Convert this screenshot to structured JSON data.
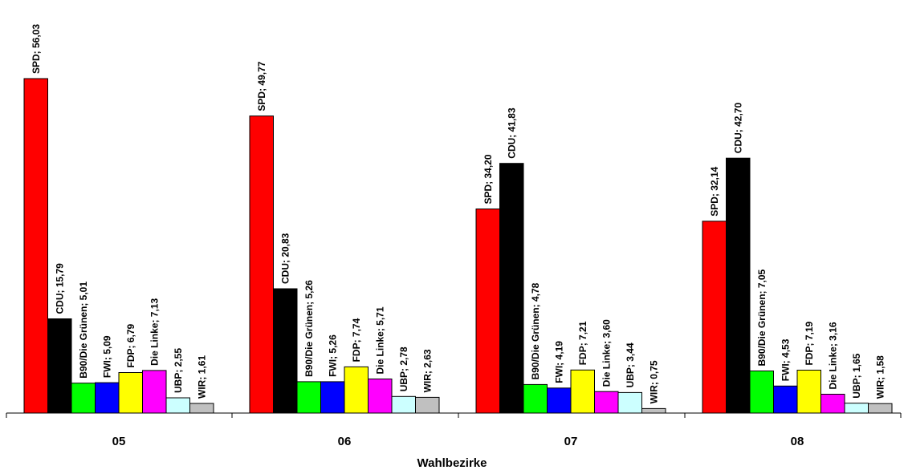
{
  "chart_data": {
    "type": "bar",
    "title": "",
    "xlabel": "Wahlbezirke",
    "ylabel": "",
    "ylim": [
      0,
      62
    ],
    "grid": false,
    "legend": "none",
    "categories": [
      "05",
      "06",
      "07",
      "08"
    ],
    "series": [
      {
        "name": "SPD",
        "color": "#ff0000",
        "values": [
          56.03,
          49.77,
          34.2,
          32.14
        ],
        "labels": [
          "SPD; 56,03",
          "SPD; 49,77",
          "SPD; 34,20",
          "SPD; 32,14"
        ]
      },
      {
        "name": "CDU",
        "color": "#000000",
        "values": [
          15.79,
          20.83,
          41.83,
          42.7
        ],
        "labels": [
          "CDU; 15,79",
          "CDU; 20,83",
          "CDU; 41,83",
          "CDU; 42,70"
        ]
      },
      {
        "name": "B90/Die Grünen",
        "color": "#00ff00",
        "values": [
          5.01,
          5.26,
          4.78,
          7.05
        ],
        "labels": [
          "B90/Die Grünen; 5,01",
          "B90/Die Grünen; 5,26",
          "B90/Die Grünen; 4,78",
          "B90/Die Grünen; 7,05"
        ]
      },
      {
        "name": "FWI",
        "color": "#0000ff",
        "values": [
          5.09,
          5.26,
          4.19,
          4.53
        ],
        "labels": [
          "FWI; 5,09",
          "FWI; 5,26",
          "FWI; 4,19",
          "FWI; 4,53"
        ]
      },
      {
        "name": "FDP",
        "color": "#ffff00",
        "values": [
          6.79,
          7.74,
          7.21,
          7.19
        ],
        "labels": [
          "FDP; 6,79",
          "FDP; 7,74",
          "FDP; 7,21",
          "FDP; 7,19"
        ]
      },
      {
        "name": "Die Linke",
        "color": "#ff00ff",
        "values": [
          7.13,
          5.71,
          3.6,
          3.16
        ],
        "labels": [
          "Die Linke; 7,13",
          "Die Linke; 5,71",
          "Die Linke; 3,60",
          "Die Linke; 3,16"
        ]
      },
      {
        "name": "UBP",
        "color": "#ccffff",
        "values": [
          2.55,
          2.78,
          3.44,
          1.65
        ],
        "labels": [
          "UBP; 2,55",
          "UBP; 2,78",
          "UBP; 3,44",
          "UBP; 1,65"
        ]
      },
      {
        "name": "WIR",
        "color": "#c0c0c0",
        "values": [
          1.61,
          2.63,
          0.75,
          1.58
        ],
        "labels": [
          "WIR; 1,61",
          "WIR; 2,63",
          "WIR; 0,75",
          "WIR; 1,58"
        ]
      }
    ]
  }
}
